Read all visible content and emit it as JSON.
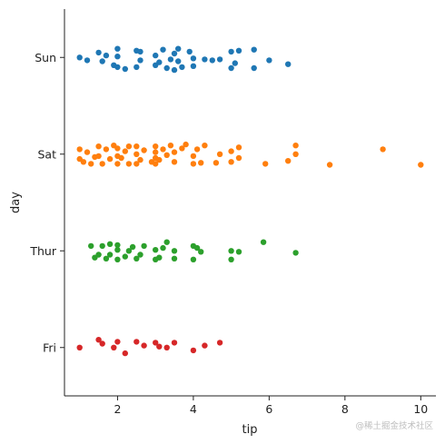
{
  "chart_data": {
    "type": "scatter",
    "subtype": "strip",
    "title": "",
    "xlabel": "tip",
    "ylabel": "day",
    "xlim": [
      0.6,
      10.4
    ],
    "x_ticks": [
      2,
      4,
      6,
      8,
      10
    ],
    "x_tick_labels": [
      "2",
      "4",
      "6",
      "8",
      "10"
    ],
    "categories": [
      "Sun",
      "Sat",
      "Thur",
      "Fri"
    ],
    "grid": false,
    "legend": "none",
    "series": [
      {
        "name": "Sun",
        "color": "#1f77b4",
        "points": [
          {
            "x": 1.0,
            "dy": 0.0
          },
          {
            "x": 1.2,
            "dy": 0.03
          },
          {
            "x": 1.5,
            "dy": -0.05
          },
          {
            "x": 1.6,
            "dy": 0.04
          },
          {
            "x": 1.7,
            "dy": -0.02
          },
          {
            "x": 1.9,
            "dy": 0.08
          },
          {
            "x": 2.0,
            "dy": 0.1
          },
          {
            "x": 2.0,
            "dy": -0.01
          },
          {
            "x": 2.0,
            "dy": -0.09
          },
          {
            "x": 2.2,
            "dy": 0.12
          },
          {
            "x": 2.5,
            "dy": 0.1
          },
          {
            "x": 2.5,
            "dy": -0.07
          },
          {
            "x": 2.6,
            "dy": 0.03
          },
          {
            "x": 2.6,
            "dy": -0.06
          },
          {
            "x": 3.0,
            "dy": 0.08
          },
          {
            "x": 3.0,
            "dy": -0.02
          },
          {
            "x": 3.1,
            "dy": 0.05
          },
          {
            "x": 3.2,
            "dy": -0.08
          },
          {
            "x": 3.3,
            "dy": 0.11
          },
          {
            "x": 3.4,
            "dy": 0.02
          },
          {
            "x": 3.5,
            "dy": -0.04
          },
          {
            "x": 3.5,
            "dy": 0.13
          },
          {
            "x": 3.6,
            "dy": 0.04
          },
          {
            "x": 3.6,
            "dy": -0.09
          },
          {
            "x": 3.7,
            "dy": 0.1
          },
          {
            "x": 3.9,
            "dy": -0.06
          },
          {
            "x": 4.0,
            "dy": 0.09
          },
          {
            "x": 4.0,
            "dy": 0.01
          },
          {
            "x": 4.3,
            "dy": 0.02
          },
          {
            "x": 4.5,
            "dy": 0.03
          },
          {
            "x": 4.7,
            "dy": 0.02
          },
          {
            "x": 5.0,
            "dy": 0.11
          },
          {
            "x": 5.0,
            "dy": -0.06
          },
          {
            "x": 5.1,
            "dy": 0.06
          },
          {
            "x": 5.2,
            "dy": -0.07
          },
          {
            "x": 5.6,
            "dy": 0.11
          },
          {
            "x": 5.6,
            "dy": -0.08
          },
          {
            "x": 6.0,
            "dy": 0.03
          },
          {
            "x": 6.5,
            "dy": 0.07
          }
        ]
      },
      {
        "name": "Sat",
        "color": "#ff7f0e",
        "points": [
          {
            "x": 1.0,
            "dy": 0.05
          },
          {
            "x": 1.0,
            "dy": -0.05
          },
          {
            "x": 1.1,
            "dy": 0.08
          },
          {
            "x": 1.2,
            "dy": -0.02
          },
          {
            "x": 1.3,
            "dy": 0.1
          },
          {
            "x": 1.4,
            "dy": 0.03
          },
          {
            "x": 1.5,
            "dy": -0.08
          },
          {
            "x": 1.5,
            "dy": 0.02
          },
          {
            "x": 1.6,
            "dy": 0.1
          },
          {
            "x": 1.7,
            "dy": -0.05
          },
          {
            "x": 1.8,
            "dy": 0.05
          },
          {
            "x": 1.9,
            "dy": -0.09
          },
          {
            "x": 2.0,
            "dy": 0.1
          },
          {
            "x": 2.0,
            "dy": 0.02
          },
          {
            "x": 2.0,
            "dy": -0.06
          },
          {
            "x": 2.1,
            "dy": 0.04
          },
          {
            "x": 2.2,
            "dy": -0.03
          },
          {
            "x": 2.3,
            "dy": 0.1
          },
          {
            "x": 2.3,
            "dy": -0.08
          },
          {
            "x": 2.5,
            "dy": 0.1
          },
          {
            "x": 2.5,
            "dy": 0.0
          },
          {
            "x": 2.5,
            "dy": -0.08
          },
          {
            "x": 2.6,
            "dy": 0.06
          },
          {
            "x": 2.7,
            "dy": -0.04
          },
          {
            "x": 2.9,
            "dy": 0.08
          },
          {
            "x": 3.0,
            "dy": 0.1
          },
          {
            "x": 3.0,
            "dy": 0.04
          },
          {
            "x": 3.0,
            "dy": -0.02
          },
          {
            "x": 3.0,
            "dy": -0.08
          },
          {
            "x": 3.1,
            "dy": 0.06
          },
          {
            "x": 3.2,
            "dy": -0.05
          },
          {
            "x": 3.3,
            "dy": 0.01
          },
          {
            "x": 3.4,
            "dy": -0.09
          },
          {
            "x": 3.5,
            "dy": 0.08
          },
          {
            "x": 3.5,
            "dy": -0.02
          },
          {
            "x": 3.7,
            "dy": -0.06
          },
          {
            "x": 3.8,
            "dy": -0.1
          },
          {
            "x": 4.0,
            "dy": 0.1
          },
          {
            "x": 4.0,
            "dy": 0.02
          },
          {
            "x": 4.1,
            "dy": -0.05
          },
          {
            "x": 4.2,
            "dy": 0.09
          },
          {
            "x": 4.3,
            "dy": -0.09
          },
          {
            "x": 4.6,
            "dy": 0.09
          },
          {
            "x": 4.7,
            "dy": 0.0
          },
          {
            "x": 5.0,
            "dy": 0.08
          },
          {
            "x": 5.0,
            "dy": -0.03
          },
          {
            "x": 5.2,
            "dy": 0.04
          },
          {
            "x": 5.2,
            "dy": -0.07
          },
          {
            "x": 5.9,
            "dy": 0.1
          },
          {
            "x": 6.5,
            "dy": 0.07
          },
          {
            "x": 6.7,
            "dy": 0.0
          },
          {
            "x": 6.7,
            "dy": -0.09
          },
          {
            "x": 7.6,
            "dy": 0.11
          },
          {
            "x": 9.0,
            "dy": -0.05
          },
          {
            "x": 10.0,
            "dy": 0.11
          }
        ]
      },
      {
        "name": "Thur",
        "color": "#2ca02c",
        "points": [
          {
            "x": 1.3,
            "dy": -0.05
          },
          {
            "x": 1.4,
            "dy": 0.07
          },
          {
            "x": 1.5,
            "dy": 0.04
          },
          {
            "x": 1.6,
            "dy": -0.05
          },
          {
            "x": 1.7,
            "dy": 0.08
          },
          {
            "x": 1.8,
            "dy": 0.04
          },
          {
            "x": 1.8,
            "dy": -0.07
          },
          {
            "x": 2.0,
            "dy": 0.09
          },
          {
            "x": 2.0,
            "dy": -0.01
          },
          {
            "x": 2.0,
            "dy": -0.06
          },
          {
            "x": 2.2,
            "dy": 0.06
          },
          {
            "x": 2.3,
            "dy": 0.0
          },
          {
            "x": 2.4,
            "dy": -0.04
          },
          {
            "x": 2.5,
            "dy": 0.08
          },
          {
            "x": 2.6,
            "dy": 0.04
          },
          {
            "x": 2.7,
            "dy": -0.05
          },
          {
            "x": 3.0,
            "dy": 0.09
          },
          {
            "x": 3.0,
            "dy": -0.01
          },
          {
            "x": 3.1,
            "dy": 0.07
          },
          {
            "x": 3.2,
            "dy": -0.03
          },
          {
            "x": 3.3,
            "dy": -0.09
          },
          {
            "x": 3.5,
            "dy": 0.08
          },
          {
            "x": 3.5,
            "dy": 0.0
          },
          {
            "x": 4.0,
            "dy": 0.09
          },
          {
            "x": 4.0,
            "dy": -0.05
          },
          {
            "x": 4.1,
            "dy": -0.03
          },
          {
            "x": 4.2,
            "dy": 0.01
          },
          {
            "x": 5.0,
            "dy": 0.09
          },
          {
            "x": 5.0,
            "dy": 0.0
          },
          {
            "x": 5.2,
            "dy": 0.01
          },
          {
            "x": 5.85,
            "dy": -0.09
          },
          {
            "x": 6.7,
            "dy": 0.02
          }
        ]
      },
      {
        "name": "Fri",
        "color": "#d62728",
        "points": [
          {
            "x": 1.0,
            "dy": 0.0
          },
          {
            "x": 1.5,
            "dy": -0.08
          },
          {
            "x": 1.6,
            "dy": -0.04
          },
          {
            "x": 1.9,
            "dy": 0.0
          },
          {
            "x": 2.0,
            "dy": -0.06
          },
          {
            "x": 2.2,
            "dy": 0.06
          },
          {
            "x": 2.5,
            "dy": -0.06
          },
          {
            "x": 2.7,
            "dy": -0.02
          },
          {
            "x": 3.0,
            "dy": -0.05
          },
          {
            "x": 3.1,
            "dy": -0.01
          },
          {
            "x": 3.3,
            "dy": 0.0
          },
          {
            "x": 3.5,
            "dy": -0.05
          },
          {
            "x": 4.0,
            "dy": 0.03
          },
          {
            "x": 4.3,
            "dy": -0.02
          },
          {
            "x": 4.7,
            "dy": -0.05
          }
        ]
      }
    ]
  },
  "watermark": "@稀土掘金技术社区"
}
